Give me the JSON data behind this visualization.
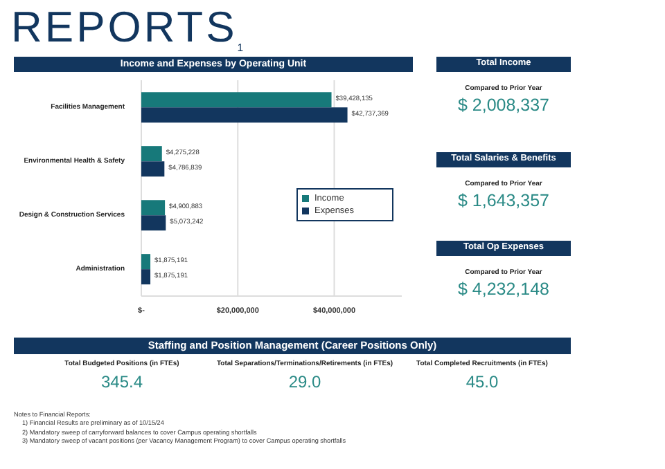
{
  "chart_data": [
    {
      "type": "other",
      "title": "REPORTS$_{1}$"
    },
    {
      "type": "bar",
      "title": "Income and Expenses by Operating Unit",
      "orientation": "horizontal",
      "categories": [
        "Facilities Management",
        "Environmental Health & Safety",
        "Design & Construction Services",
        "Administration"
      ],
      "series": [
        {
          "name": "Income",
          "color": "#17797a",
          "values": [
            39428135,
            4275228,
            4900883,
            1875191
          ],
          "value_labels": [
            "$39,428,135",
            "$4,275,228",
            "$4,900,883",
            "$1,875,191"
          ]
        },
        {
          "name": "Expenses",
          "color": "#12365e",
          "values": [
            42737369,
            4786839,
            5073242,
            1875191
          ],
          "value_labels": [
            "$42,737,369",
            "$4,786,839",
            "$5,073,242",
            "$1,875,191"
          ]
        }
      ],
      "xlim": [
        0,
        54000000
      ],
      "xticks": [
        {
          "value": 0,
          "label": "$-"
        },
        {
          "value": 20000000,
          "label": "$20,000,000"
        },
        {
          "value": 40000000,
          "label": "$40,000,000"
        }
      ],
      "grid": "x",
      "legend": "right"
    },
    {
      "type": "other",
      "title": "Total Income",
      "annotations": [
        "Compared to Prior Year",
        "$ 2,008,337"
      ]
    },
    {
      "type": "other",
      "title": "Total Salaries & Benefits",
      "annotations": [
        "Compared to Prior Year",
        "$ 1,643,357"
      ]
    },
    {
      "type": "other",
      "title": "Total Op Expenses",
      "annotations": [
        "Compared to Prior Year",
        "$ 4,232,148"
      ]
    },
    {
      "type": "other",
      "title": "Staffing and Position Management (Career Positions Only)",
      "annotations": [
        "Total Budgeted Positions (in FTEs)",
        "345.4",
        "Total Separations/Terminations/Retirements (in FTEs)",
        "29.0",
        "Total Completed Recruitments (in FTEs)",
        "45.0",
        "Notes to Financial Reports:",
        "1) Financial Results are preliminary as of 10/15/24",
        "2) Mandatory sweep of carryforward balances to cover Campus operating shortfalls",
        "3) Mandatory sweep of vacant positions (per Vacancy Management Program) to cover Campus operating shortfalls"
      ]
    }
  ]
}
